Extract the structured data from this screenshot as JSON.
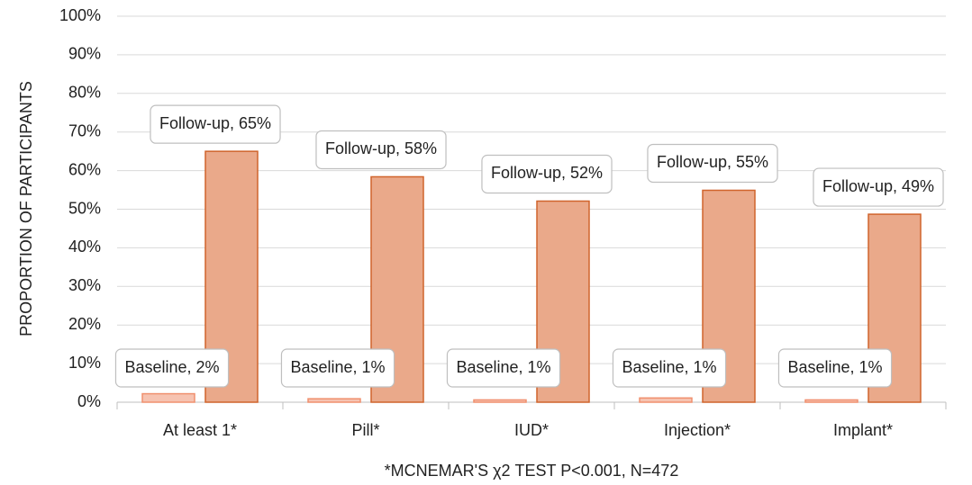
{
  "chart_data": {
    "type": "bar",
    "ylabel": "PROPORTION OF PARTICIPANTS",
    "xlabel": "*MCNEMAR'S χ2 TEST P<0.001, N=472",
    "categories": [
      "At least 1*",
      "Pill*",
      "IUD*",
      "Injection*",
      "Implant*"
    ],
    "series": [
      {
        "name": "Baseline",
        "color": "#f6c3b1",
        "edgecolor": "#f0906f",
        "values": [
          2.2,
          0.9,
          0.6,
          1.1,
          0.6
        ],
        "value_labels": [
          "Baseline, 2%",
          "Baseline, 1%",
          "Baseline, 1%",
          "Baseline, 1%",
          "Baseline, 1%"
        ]
      },
      {
        "name": "Follow-up",
        "color": "#eaa98a",
        "edgecolor": "#d0642c",
        "values": [
          65,
          58.4,
          52.1,
          54.9,
          48.7
        ],
        "value_labels": [
          "Follow-up, 65%",
          "Follow-up, 58%",
          "Follow-up, 52%",
          "Follow-up, 55%",
          "Follow-up, 49%"
        ]
      }
    ],
    "ylim": [
      0,
      100
    ],
    "yticks": [
      {
        "value": 0,
        "label": "0%"
      },
      {
        "value": 10,
        "label": "10%"
      },
      {
        "value": 20,
        "label": "20%"
      },
      {
        "value": 30,
        "label": "30%"
      },
      {
        "value": 40,
        "label": "40%"
      },
      {
        "value": 50,
        "label": "50%"
      },
      {
        "value": 60,
        "label": "60%"
      },
      {
        "value": 70,
        "label": "70%"
      },
      {
        "value": 80,
        "label": "80%"
      },
      {
        "value": 90,
        "label": "90%"
      },
      {
        "value": 100,
        "label": "100%"
      }
    ],
    "grid": true
  }
}
